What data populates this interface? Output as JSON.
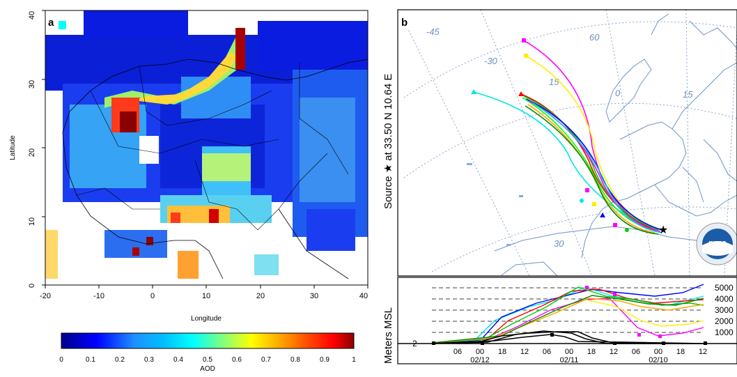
{
  "panel_a": {
    "label": "a",
    "xlabel": "Longitude",
    "ylabel": "Latitude",
    "xticks": [
      "-20",
      "-10",
      "0",
      "10",
      "20",
      "30",
      "40"
    ],
    "yticks": [
      "0",
      "10",
      "20",
      "30",
      "40"
    ],
    "colorbar_label": "AOD",
    "colorbar_ticks": [
      "0",
      "0.1",
      "0.2",
      "0.3",
      "0.4",
      "0.5",
      "0.6",
      "0.7",
      "0.8",
      "0.9",
      "1"
    ],
    "colors": [
      "#00008b",
      "#0000ff",
      "#1e90ff",
      "#00bfff",
      "#00ffff",
      "#7fff7f",
      "#ffff00",
      "#ffa500",
      "#ff4500",
      "#ff0000",
      "#8b0000"
    ]
  },
  "panel_b": {
    "label": "b",
    "side_title": "Source ★ at   33.50 N   10.64 E",
    "grid_labels": [
      "-45",
      "-30",
      "60",
      "15",
      "0",
      "15",
      "30"
    ],
    "height_ylabel": "Meters MSL",
    "height_levels": [
      "5000",
      "4000",
      "3000",
      "2000",
      "1000"
    ],
    "height_min_label": "2",
    "time_ticks": [
      "06",
      "00",
      "18",
      "12",
      "06",
      "00",
      "18",
      "12",
      "06",
      "00",
      "18",
      "12"
    ],
    "date_labels": [
      "02/12",
      "02/11",
      "02/10"
    ],
    "logo_text": "noaa",
    "source_marker": "★"
  }
}
